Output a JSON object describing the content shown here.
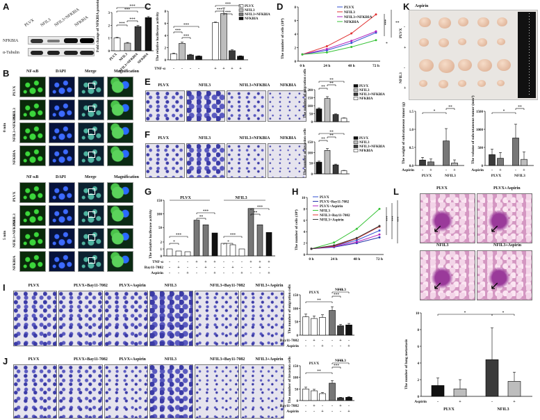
{
  "colors": {
    "black": "#111111",
    "dark": "#3a3a3a",
    "mid": "#777777",
    "light": "#bdbdbd",
    "white": "#ffffff",
    "red": "#e03030",
    "blue": "#2f4fd1",
    "purple": "#b020c0",
    "green": "#34c234",
    "dblue": "#2233aa"
  },
  "panels": {
    "A": "A",
    "B": "B",
    "C": "C",
    "D": "D",
    "E": "E",
    "F": "F",
    "G": "G",
    "H": "H",
    "I": "I",
    "J": "J",
    "K": "K",
    "L": "L"
  },
  "panelA": {
    "cols": [
      "PLVX",
      "NFIL3",
      "NFIL3+NFKBIA",
      "NFKBIA"
    ],
    "rows": [
      "NFKBIA",
      "α-Tubulin"
    ],
    "ylabel": "Fold change of NFKBIA protein expression",
    "sig": [
      "***",
      "***",
      "***",
      "***"
    ]
  },
  "panelB": {
    "headers": [
      "NF-κB",
      "DAPI",
      "Merge",
      "Magnification"
    ],
    "rows": [
      "PLVX",
      "NFIL3",
      "NFIL3+NFKBIA",
      "NFKBIA"
    ],
    "time0": "0 min",
    "time5": "5 min"
  },
  "panelC": {
    "ylabel": "The relative luciferase activity",
    "legend": [
      "PLVX",
      "NFIL3",
      "NFIL3+NFKBIA",
      "NFKBIA"
    ],
    "tnf_label": "TNF-α",
    "tnf": [
      "-",
      "-",
      "-",
      "-",
      "+",
      "+",
      "+",
      "+"
    ],
    "sig": [
      "***",
      "***",
      "***",
      "***",
      "***",
      "***"
    ]
  },
  "panelD": {
    "ylabel": "The number of cells (10⁴)",
    "x": [
      "0 h",
      "24 h",
      "48 h",
      "72 h"
    ],
    "legend": [
      "PLVX",
      "NFIL3",
      "NFIL3+NFKBIA",
      "NFKBIA"
    ],
    "sig": [
      "***",
      "**",
      "*"
    ]
  },
  "panelE": {
    "labels": [
      "PLVX",
      "NFIL3",
      "NFIL3+NFKBIA",
      "NFKBIA"
    ],
    "ylabel": "The number of migration cells",
    "legend": [
      "PLVX",
      "NFIL3",
      "NFIL3+NFKBIA",
      "NFKBIA"
    ],
    "sig": [
      "**",
      "**",
      "**"
    ]
  },
  "panelF": {
    "labels": [
      "PLVX",
      "NFIL3",
      "NFIL3+NFKBIA",
      "NFKBIA"
    ],
    "ylabel": "The number of invasion cells",
    "legend": [
      "PLVX",
      "NFIL3",
      "NFIL3+NFKBIA",
      "NFKBIA"
    ],
    "sig": [
      "**",
      "**",
      "**"
    ]
  },
  "panelG": {
    "ylabel": "The relative luciferase activity",
    "groups": [
      "PLVX",
      "NFIL3"
    ],
    "rows": [
      "TNF-α",
      "Bay11-7082",
      "Aspirin"
    ],
    "tnf": [
      "-",
      "-",
      "-",
      "+",
      "+",
      "+",
      "-",
      "-",
      "-",
      "+",
      "+",
      "+"
    ],
    "bay": [
      "-",
      "+",
      "-",
      "-",
      "+",
      "-",
      "-",
      "+",
      "-",
      "-",
      "+",
      "-"
    ],
    "asp": [
      "-",
      "-",
      "+",
      "-",
      "-",
      "+",
      "-",
      "-",
      "+",
      "-",
      "-",
      "+"
    ],
    "sig": [
      "***",
      "*",
      "***",
      "**",
      "***",
      "*",
      "***",
      "**"
    ]
  },
  "panelH": {
    "ylabel": "The number of cells (10⁴)",
    "x": [
      "0 h",
      "24 h",
      "48 h",
      "72 h"
    ],
    "legend": [
      "PLVX",
      "PLVX+Bay11-7082",
      "PLVX+Aspirin",
      "NFIL3",
      "NFIL3+Bay11-7082",
      "NFIL3+Aspirin"
    ],
    "sig": [
      "***",
      "***",
      "***"
    ]
  },
  "panelI": {
    "labels": [
      "PLVX",
      "PLVX+Bay11-7082",
      "PLVX+Aspirin",
      "NFIL3",
      "NFIL3+Bay11-7082",
      "NFIL3+Aspirin"
    ],
    "ylabel": "The number of migration cells",
    "groups": [
      "PLVX",
      "NFIL3"
    ],
    "rows": [
      "Bay11-7082",
      "Aspirin"
    ],
    "bay": [
      "-",
      "+",
      "-",
      "-",
      "+",
      "-"
    ],
    "asp": [
      "-",
      "-",
      "+",
      "-",
      "-",
      "+"
    ],
    "sig": [
      "**",
      "***",
      "***"
    ]
  },
  "panelJ": {
    "labels": [
      "PLVX",
      "PLVX+Bay11-7082",
      "PLVX+Aspirin",
      "NFIL3",
      "NFIL3+Bay11-7082",
      "NFIL3+Aspirin"
    ],
    "ylabel": "The number of invasion cells",
    "groups": [
      "PLVX",
      "NFIL3"
    ],
    "rows": [
      "Bay11-7082",
      "Aspirin"
    ],
    "bay": [
      "-",
      "+",
      "-",
      "-",
      "+",
      "-"
    ],
    "asp": [
      "-",
      "-",
      "+",
      "-",
      "-",
      "+"
    ],
    "sig": [
      "**",
      "***",
      "***"
    ]
  },
  "panelK": {
    "aspirin_label": "Aspirin",
    "rows": [
      "PLVX",
      "NFIL3"
    ],
    "signs": [
      "-",
      "+",
      "-",
      "+"
    ],
    "chart1_ylabel": "The weight of subcutaneous tumor (g)",
    "chart2_ylabel": "The volume of subcutaneous tumor (mm³)",
    "groups": [
      "PLVX",
      "NFIL3"
    ],
    "asp": [
      "-",
      "+",
      "-",
      "+"
    ],
    "sig": [
      "*",
      "**"
    ]
  },
  "panelL": {
    "labels": [
      "PLVX",
      "PLVX+Aspirin",
      "NFIL3",
      "NFIL3+Aspirin"
    ],
    "ylabel": "The number of lung metastasis",
    "groups": [
      "PLVX",
      "NFIL3"
    ],
    "asp": [
      "-",
      "+",
      "-",
      "+"
    ],
    "sig": [
      "*",
      "*"
    ]
  },
  "chart_data": [
    {
      "id": "A-bar",
      "type": "bar",
      "categories": [
        "PLVX",
        "NFIL3",
        "NFIL3+NFKBIA",
        "NFKBIA"
      ],
      "values": [
        1.0,
        0.6,
        1.9,
        2.6
      ],
      "ylim": [
        0,
        3
      ],
      "yticks": [
        "0",
        "1",
        "2",
        "3"
      ]
    },
    {
      "id": "C-bar",
      "type": "bar",
      "categories": [
        "PLVX",
        "NFIL3",
        "NFIL3+NFKBIA",
        "NFKBIA",
        "PLVX",
        "NFIL3",
        "NFIL3+NFKBIA",
        "NFKBIA"
      ],
      "values": [
        1.0,
        2.7,
        0.8,
        0.6,
        6.1,
        7.6,
        1.5,
        0.6
      ],
      "ylim": [
        0,
        8
      ],
      "yticks": [
        "0",
        "2",
        "4",
        "6",
        "8"
      ]
    },
    {
      "id": "D-line",
      "type": "line",
      "x": [
        "0 h",
        "24 h",
        "48 h",
        "72 h"
      ],
      "ylim": [
        0,
        8
      ],
      "yticks": [
        "0",
        "2",
        "4",
        "6",
        "8"
      ],
      "series": [
        {
          "name": "PLVX",
          "values": [
            1.0,
            1.6,
            2.7,
            4.2
          ]
        },
        {
          "name": "NFIL3",
          "values": [
            1.0,
            2.2,
            4.1,
            6.9
          ]
        },
        {
          "name": "NFIL3+NFKBIA",
          "values": [
            1.0,
            1.8,
            3.0,
            4.4
          ]
        },
        {
          "name": "NFKBIA",
          "values": [
            1.0,
            1.3,
            2.1,
            3.1
          ]
        }
      ]
    },
    {
      "id": "E-bar",
      "type": "bar",
      "categories": [
        "PLVX",
        "NFIL3",
        "NFIL3+NFKBIA",
        "NFKBIA"
      ],
      "values": [
        80,
        145,
        45,
        22
      ],
      "ylim": [
        0,
        200
      ],
      "yticks": [
        "0",
        "50",
        "100",
        "150",
        "200"
      ]
    },
    {
      "id": "F-bar",
      "type": "bar",
      "categories": [
        "PLVX",
        "NFIL3",
        "NFIL3+NFKBIA",
        "NFKBIA"
      ],
      "values": [
        55,
        110,
        42,
        15
      ],
      "ylim": [
        0,
        150
      ],
      "yticks": [
        "0",
        "50",
        "100",
        "150"
      ]
    },
    {
      "id": "G-bar",
      "type": "bar",
      "values": [
        1.0,
        0.7,
        0.6,
        77,
        60,
        30,
        1.8,
        1.6,
        1.0,
        120,
        60,
        32
      ],
      "ylim": [
        0,
        150
      ],
      "yticks": [
        "0",
        "1",
        "2",
        "50",
        "100",
        "150"
      ]
    },
    {
      "id": "H-line",
      "type": "line",
      "x": [
        "0 h",
        "24 h",
        "48 h",
        "72 h"
      ],
      "ylim": [
        0,
        10
      ],
      "yticks": [
        "0",
        "2",
        "4",
        "6",
        "8",
        "10"
      ],
      "series": [
        {
          "name": "PLVX",
          "values": [
            1.0,
            1.5,
            2.5,
            4.2
          ]
        },
        {
          "name": "PLVX+Bay11-7082",
          "values": [
            1.0,
            1.3,
            2.0,
            3.0
          ]
        },
        {
          "name": "PLVX+Aspirin",
          "values": [
            1.0,
            1.4,
            2.2,
            3.5
          ]
        },
        {
          "name": "NFIL3",
          "values": [
            1.0,
            2.1,
            4.5,
            8.0
          ]
        },
        {
          "name": "NFIL3+Bay11-7082",
          "values": [
            1.0,
            1.5,
            2.8,
            4.9
          ]
        },
        {
          "name": "NFIL3+Aspirin",
          "values": [
            1.0,
            1.6,
            2.9,
            5.0
          ]
        }
      ]
    },
    {
      "id": "I-bar",
      "type": "bar",
      "categories": [
        "PLVX",
        "PLVX+Bay11-7082",
        "PLVX+Aspirin",
        "NFIL3",
        "NFIL3+Bay11-7082",
        "NFIL3+Aspirin"
      ],
      "values": [
        68,
        62,
        66,
        92,
        35,
        38
      ],
      "ylim": [
        0,
        150
      ],
      "yticks": [
        "0",
        "50",
        "100",
        "150"
      ]
    },
    {
      "id": "J-bar",
      "type": "bar",
      "categories": [
        "PLVX",
        "PLVX+Bay11-7082",
        "PLVX+Aspirin",
        "NFIL3",
        "NFIL3+Bay11-7082",
        "NFIL3+Aspirin"
      ],
      "values": [
        50,
        42,
        30,
        75,
        12,
        14
      ],
      "ylim": [
        0,
        150
      ],
      "yticks": [
        "0",
        "50",
        "100",
        "150"
      ]
    },
    {
      "id": "K-weight",
      "type": "bar",
      "categories": [
        "PLVX -",
        "PLVX +",
        "NFIL3 -",
        "NFIL3 +"
      ],
      "values": [
        0.15,
        0.1,
        0.68,
        0.07
      ],
      "ylim": [
        0,
        1.5
      ],
      "yticks": [
        "0.0",
        "0.5",
        "1.0",
        "1.5"
      ]
    },
    {
      "id": "K-volume",
      "type": "bar",
      "categories": [
        "PLVX -",
        "PLVX +",
        "NFIL3 -",
        "NFIL3 +"
      ],
      "values": [
        300,
        200,
        760,
        170
      ],
      "ylim": [
        0,
        1500
      ],
      "yticks": [
        "0",
        "500",
        "1000",
        "1500"
      ]
    },
    {
      "id": "L-bar",
      "type": "bar",
      "categories": [
        "PLVX -",
        "PLVX +",
        "NFIL3 -",
        "NFIL3 +"
      ],
      "values": [
        1.3,
        0.9,
        4.4,
        1.8
      ],
      "ylim": [
        0,
        10
      ],
      "yticks": [
        "0",
        "2",
        "4",
        "6",
        "8",
        "10"
      ]
    }
  ]
}
